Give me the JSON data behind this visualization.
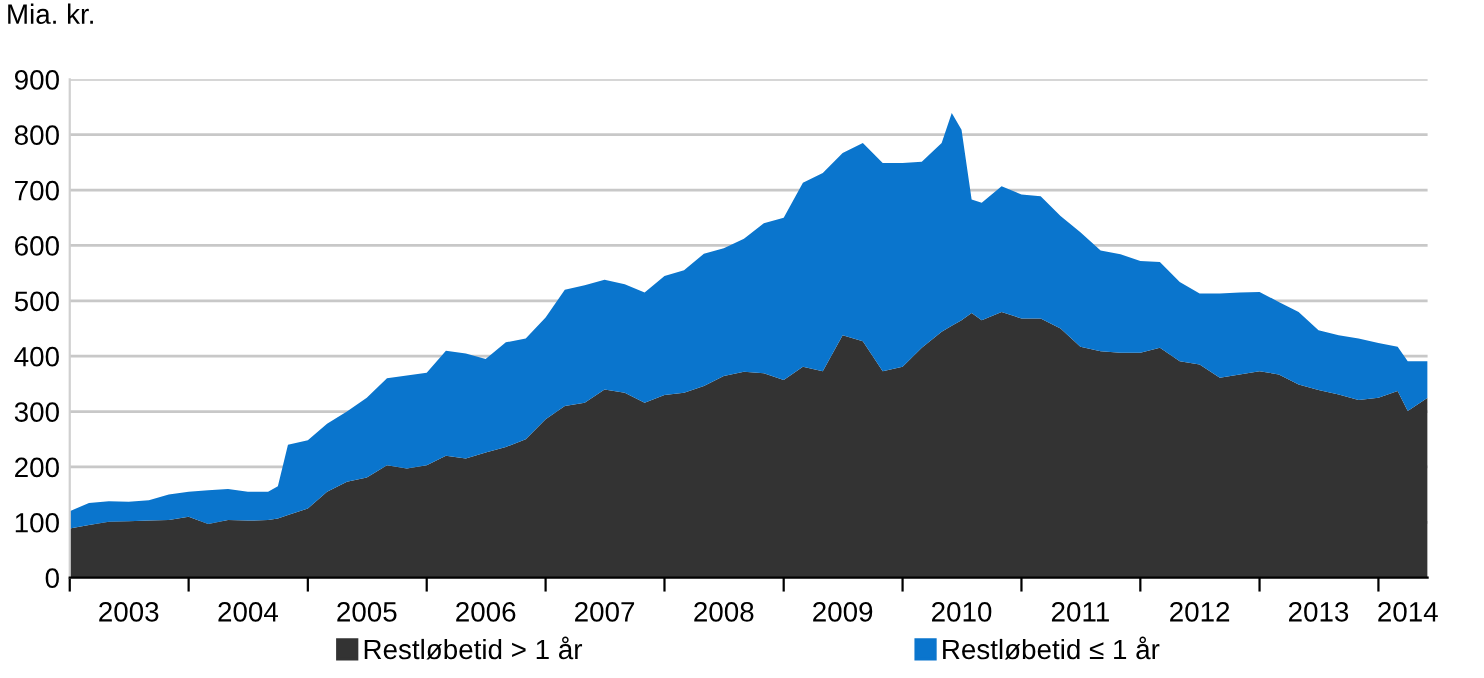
{
  "chart_data": {
    "type": "area",
    "stacked": true,
    "ylabel": "Mia. kr.",
    "x": [
      "2003-01",
      "2003-03",
      "2003-05",
      "2003-07",
      "2003-09",
      "2003-11",
      "2004-01",
      "2004-03",
      "2004-05",
      "2004-07",
      "2004-09",
      "2004-10",
      "2004-11",
      "2005-01",
      "2005-03",
      "2005-05",
      "2005-07",
      "2005-09",
      "2005-11",
      "2006-01",
      "2006-03",
      "2006-05",
      "2006-07",
      "2006-09",
      "2006-11",
      "2007-01",
      "2007-03",
      "2007-05",
      "2007-07",
      "2007-09",
      "2007-11",
      "2008-01",
      "2008-03",
      "2008-05",
      "2008-07",
      "2008-09",
      "2008-11",
      "2009-01",
      "2009-03",
      "2009-05",
      "2009-07",
      "2009-09",
      "2009-11",
      "2010-01",
      "2010-03",
      "2010-05",
      "2010-06",
      "2010-07",
      "2010-08",
      "2010-09",
      "2010-11",
      "2011-01",
      "2011-03",
      "2011-05",
      "2011-07",
      "2011-09",
      "2011-11",
      "2012-01",
      "2012-03",
      "2012-05",
      "2012-07",
      "2012-09",
      "2012-11",
      "2013-01",
      "2013-03",
      "2013-05",
      "2013-07",
      "2013-09",
      "2013-11",
      "2014-01",
      "2014-03",
      "2014-04",
      "2014-06"
    ],
    "series": [
      {
        "name": "Restløbetid > 1 år",
        "color": "#333333",
        "values": [
          89,
          95,
          101,
          102,
          103,
          104,
          110,
          97,
          104,
          103,
          104,
          107,
          113,
          125,
          155,
          173,
          181,
          203,
          197,
          203,
          220,
          215,
          226,
          236,
          250,
          286,
          310,
          316,
          340,
          334,
          316,
          330,
          334,
          346,
          364,
          372,
          369,
          357,
          381,
          373,
          438,
          427,
          373,
          381,
          415,
          444,
          455,
          465,
          478,
          465,
          480,
          468,
          468,
          450,
          417,
          409,
          406,
          406,
          415,
          391,
          385,
          361,
          367,
          373,
          367,
          349,
          339,
          331,
          321,
          325,
          337,
          301,
          325
        ]
      },
      {
        "name": "Restløbetid ≤ 1 år",
        "color": "#0a75cd",
        "values": [
          31,
          40,
          37,
          35,
          37,
          46,
          45,
          61,
          56,
          52,
          51,
          58,
          127,
          123,
          123,
          127,
          144,
          157,
          168,
          167,
          190,
          190,
          169,
          189,
          182,
          184,
          210,
          212,
          198,
          196,
          199,
          215,
          221,
          239,
          231,
          240,
          271,
          293,
          332,
          358,
          329,
          358,
          376,
          368,
          336,
          341,
          384,
          344,
          205,
          212,
          227,
          224,
          221,
          203,
          207,
          182,
          178,
          166,
          155,
          143,
          128,
          152,
          148,
          143,
          131,
          131,
          108,
          107,
          111,
          99,
          80,
          90,
          66
        ]
      }
    ],
    "xlim": [
      "2003-01",
      "2014-06"
    ],
    "xticks": [
      {
        "value": "2003-01",
        "label": null
      },
      {
        "value": "2003-07",
        "label": "2003"
      },
      {
        "value": "2004-01",
        "label": null
      },
      {
        "value": "2004-07",
        "label": "2004"
      },
      {
        "value": "2005-01",
        "label": null
      },
      {
        "value": "2005-07",
        "label": "2005"
      },
      {
        "value": "2006-01",
        "label": null
      },
      {
        "value": "2006-07",
        "label": "2006"
      },
      {
        "value": "2007-01",
        "label": null
      },
      {
        "value": "2007-07",
        "label": "2007"
      },
      {
        "value": "2008-01",
        "label": null
      },
      {
        "value": "2008-07",
        "label": "2008"
      },
      {
        "value": "2009-01",
        "label": null
      },
      {
        "value": "2009-07",
        "label": "2009"
      },
      {
        "value": "2010-01",
        "label": null
      },
      {
        "value": "2010-07",
        "label": "2010"
      },
      {
        "value": "2011-01",
        "label": null
      },
      {
        "value": "2011-07",
        "label": "2011"
      },
      {
        "value": "2012-01",
        "label": null
      },
      {
        "value": "2012-07",
        "label": "2012"
      },
      {
        "value": "2013-01",
        "label": null
      },
      {
        "value": "2013-07",
        "label": "2013"
      },
      {
        "value": "2014-01",
        "label": null
      },
      {
        "value": "2014-04",
        "label": "2014"
      }
    ],
    "ylim": [
      0,
      900
    ],
    "yticks": [
      0,
      100,
      200,
      300,
      400,
      500,
      600,
      700,
      800,
      900
    ],
    "grid": "y",
    "legend": "bottom"
  }
}
